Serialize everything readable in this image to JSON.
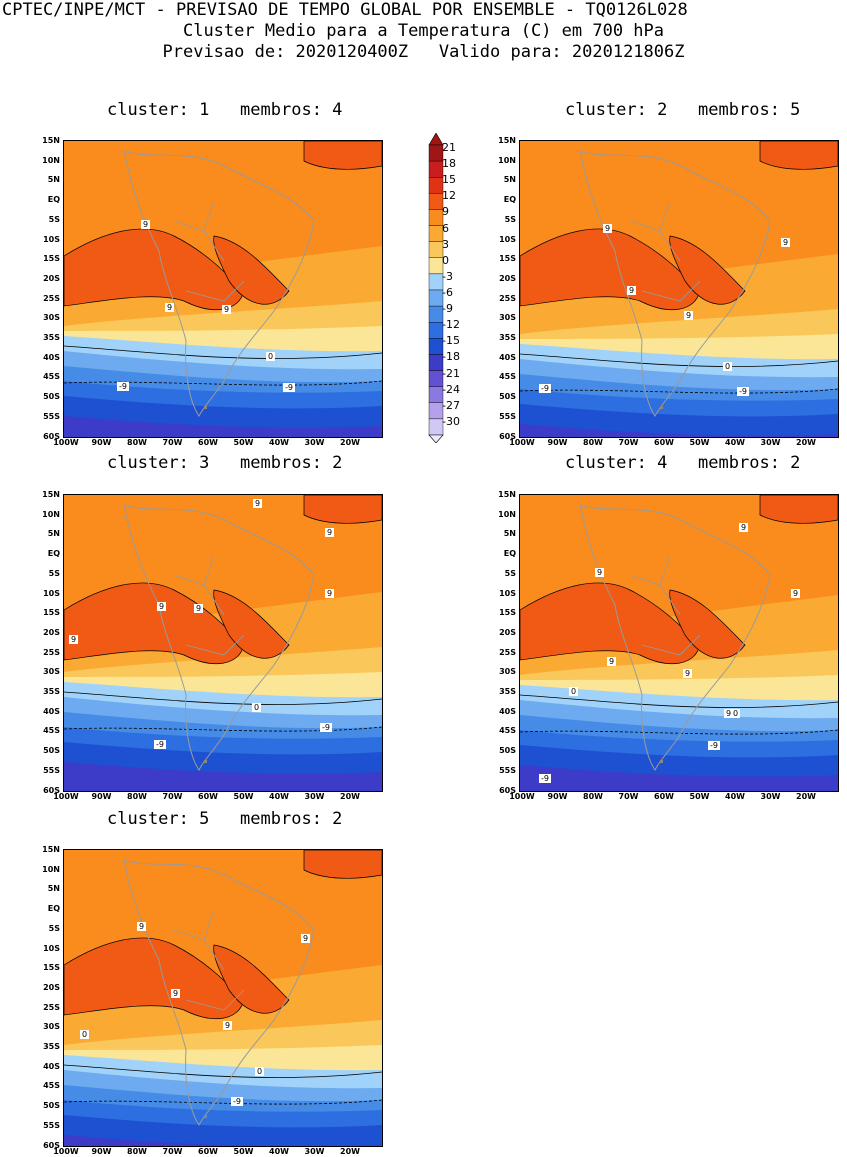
{
  "header": {
    "line1": "CPTEC/INPE/MCT - PREVISAO DE TEMPO GLOBAL POR ENSEMBLE - TQ0126L028",
    "line2": "Cluster Medio para a Temperatura (C) em 700 hPa",
    "line3": "Previsao de: 2020120400Z   Valido para: 2020121806Z"
  },
  "axes": {
    "lat_ticks": [
      "15N",
      "10N",
      "5N",
      "EQ",
      "5S",
      "10S",
      "15S",
      "20S",
      "25S",
      "30S",
      "35S",
      "40S",
      "45S",
      "50S",
      "55S",
      "60S"
    ],
    "lon_ticks": [
      "100W",
      "90W",
      "80W",
      "70W",
      "60W",
      "50W",
      "40W",
      "30W",
      "20W"
    ]
  },
  "colorbar": {
    "labels": [
      "21",
      "18",
      "15",
      "12",
      "9",
      "6",
      "3",
      "0",
      "-3",
      "-6",
      "-9",
      "-12",
      "-15",
      "-18",
      "-21",
      "-24",
      "-27",
      "-30"
    ],
    "colors": [
      "#a01515",
      "#c81e1e",
      "#e03214",
      "#f05a14",
      "#fa8c1e",
      "#faaa32",
      "#fac85a",
      "#fae696",
      "#a0d2fa",
      "#6eaaf0",
      "#468ce6",
      "#2d6ee1",
      "#1e50d2",
      "#3c3cc8",
      "#6450d2",
      "#8c78e1",
      "#b4a0eb",
      "#d2c8f5"
    ]
  },
  "panels": [
    {
      "title": "cluster: 1   membros: 4",
      "labels": [
        "9",
        "9",
        "9",
        "0",
        "-9",
        "-9"
      ]
    },
    {
      "title": "cluster: 2   membros: 5",
      "labels": [
        "9",
        "9",
        "9",
        "9",
        "0",
        "-9",
        "-9"
      ]
    },
    {
      "title": "cluster: 3   membros: 2",
      "labels": [
        "9",
        "9",
        "9",
        "9",
        "9",
        "9",
        "0",
        "-9",
        "-9"
      ]
    },
    {
      "title": "cluster: 4   membros: 2",
      "labels": [
        "9",
        "9",
        "9",
        "9",
        "9",
        "9",
        "0",
        "0",
        "-9",
        "-9"
      ]
    },
    {
      "title": "cluster: 5   membros: 2",
      "labels": [
        "9",
        "9",
        "9",
        "9",
        "0",
        "0",
        "-9"
      ]
    }
  ]
}
